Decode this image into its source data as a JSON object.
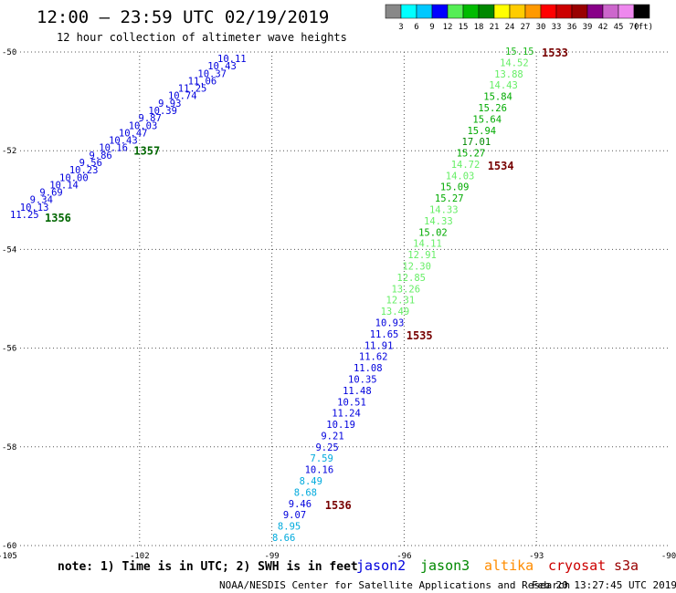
{
  "title": "12:00 – 23:59 UTC 02/19/2019",
  "subtitle": "12 hour collection of altimeter wave heights",
  "note": "note: 1) Time is in UTC; 2) SWH is in feet",
  "credit": "NOAA/NESDIS Center for Satellite Applications and Research",
  "generated": "Feb 20 13:27:45 UTC 2019",
  "color_scale": {
    "labels": [
      "3",
      "6",
      "9",
      "12",
      "15",
      "18",
      "21",
      "24",
      "27",
      "30",
      "33",
      "36",
      "39",
      "42",
      "45",
      "70"
    ],
    "unit": "(ft)",
    "colors": [
      "#888888",
      "#00ffff",
      "#00c8ff",
      "#0000ff",
      "#55ee55",
      "#00bb00",
      "#008800",
      "#ffff00",
      "#ffcc00",
      "#ff9900",
      "#ff0000",
      "#cc0000",
      "#990000",
      "#880088",
      "#cc66cc",
      "#ee88ee",
      "#000000"
    ]
  },
  "map": {
    "lon_ticks": [
      "-105",
      "-102",
      "-99",
      "-96",
      "-93",
      "-90"
    ],
    "lat_ticks": [
      "-50",
      "-52",
      "-54",
      "-56",
      "-58",
      "-60"
    ],
    "lon_range": [
      -105,
      -90
    ],
    "lat_range": [
      -60,
      -50
    ]
  },
  "legend": [
    {
      "name": "jason2",
      "color": "#0000dd"
    },
    {
      "name": "jason3",
      "color": "#008800"
    },
    {
      "name": "altika",
      "color": "#ff8c00"
    },
    {
      "name": "cryosat",
      "color": "#cc0000"
    },
    {
      "name": "s3a",
      "color": "#990000"
    }
  ],
  "track_west": {
    "color": "#0000dd",
    "values": [
      "10.11",
      "10.43",
      "10.37",
      "11.06",
      "11.25",
      "10.74",
      "9.93",
      "10.39",
      "9.87",
      "10.03",
      "10.47",
      "10.43",
      "10.16",
      "9.86",
      "9.56",
      "10.23",
      "10.00",
      "10.14",
      "9.69",
      "9.34",
      "10.13",
      "11.25"
    ],
    "time_labels": [
      {
        "text": "1357",
        "color": "#006600",
        "after": 12
      },
      {
        "text": "1356",
        "color": "#006600",
        "after": 21
      }
    ]
  },
  "track_east": {
    "values": [
      {
        "v": "15.15",
        "c": "#22bb22"
      },
      {
        "v": "14.52",
        "c": "#66ee66"
      },
      {
        "v": "13.88",
        "c": "#66ee66"
      },
      {
        "v": "14.43",
        "c": "#66ee66"
      },
      {
        "v": "15.84",
        "c": "#00aa00"
      },
      {
        "v": "15.26",
        "c": "#00aa00"
      },
      {
        "v": "15.64",
        "c": "#00aa00"
      },
      {
        "v": "15.94",
        "c": "#00aa00"
      },
      {
        "v": "17.01",
        "c": "#008800"
      },
      {
        "v": "15.27",
        "c": "#00aa00"
      },
      {
        "v": "14.72",
        "c": "#66ee66"
      },
      {
        "v": "14.03",
        "c": "#66ee66"
      },
      {
        "v": "15.09",
        "c": "#00aa00"
      },
      {
        "v": "15.27",
        "c": "#00aa00"
      },
      {
        "v": "14.33",
        "c": "#66ee66"
      },
      {
        "v": "14.33",
        "c": "#66ee66"
      },
      {
        "v": "15.02",
        "c": "#00aa00"
      },
      {
        "v": "14.11",
        "c": "#66ee66"
      },
      {
        "v": "12.91",
        "c": "#66ee66"
      },
      {
        "v": "12.30",
        "c": "#66ee66"
      },
      {
        "v": "12.85",
        "c": "#66ee66"
      },
      {
        "v": "13.26",
        "c": "#66ee66"
      },
      {
        "v": "12.31",
        "c": "#66ee66"
      },
      {
        "v": "13.49",
        "c": "#66ee66"
      },
      {
        "v": "10.93",
        "c": "#0000dd"
      },
      {
        "v": "11.65",
        "c": "#0000dd"
      },
      {
        "v": "11.91",
        "c": "#0000dd"
      },
      {
        "v": "11.62",
        "c": "#0000dd"
      },
      {
        "v": "11.08",
        "c": "#0000dd"
      },
      {
        "v": "10.35",
        "c": "#0000dd"
      },
      {
        "v": "11.48",
        "c": "#0000dd"
      },
      {
        "v": "10.51",
        "c": "#0000dd"
      },
      {
        "v": "11.24",
        "c": "#0000dd"
      },
      {
        "v": "10.19",
        "c": "#0000dd"
      },
      {
        "v": "9.21",
        "c": "#0000dd"
      },
      {
        "v": "9.25",
        "c": "#0000dd"
      },
      {
        "v": "7.59",
        "c": "#00aadd"
      },
      {
        "v": "10.16",
        "c": "#0000dd"
      },
      {
        "v": "8.49",
        "c": "#00aadd"
      },
      {
        "v": "8.68",
        "c": "#00aadd"
      },
      {
        "v": "9.46",
        "c": "#0000dd"
      },
      {
        "v": "9.07",
        "c": "#0000dd"
      },
      {
        "v": "8.95",
        "c": "#00aadd"
      },
      {
        "v": "8.66",
        "c": "#00aadd"
      }
    ],
    "time_labels": [
      {
        "text": "1533",
        "color": "#770000",
        "at": 0
      },
      {
        "text": "1534",
        "color": "#770000",
        "at": 10
      },
      {
        "text": "1535",
        "color": "#770000",
        "at": 25
      },
      {
        "text": "1536",
        "color": "#770000",
        "at": 40
      }
    ]
  }
}
